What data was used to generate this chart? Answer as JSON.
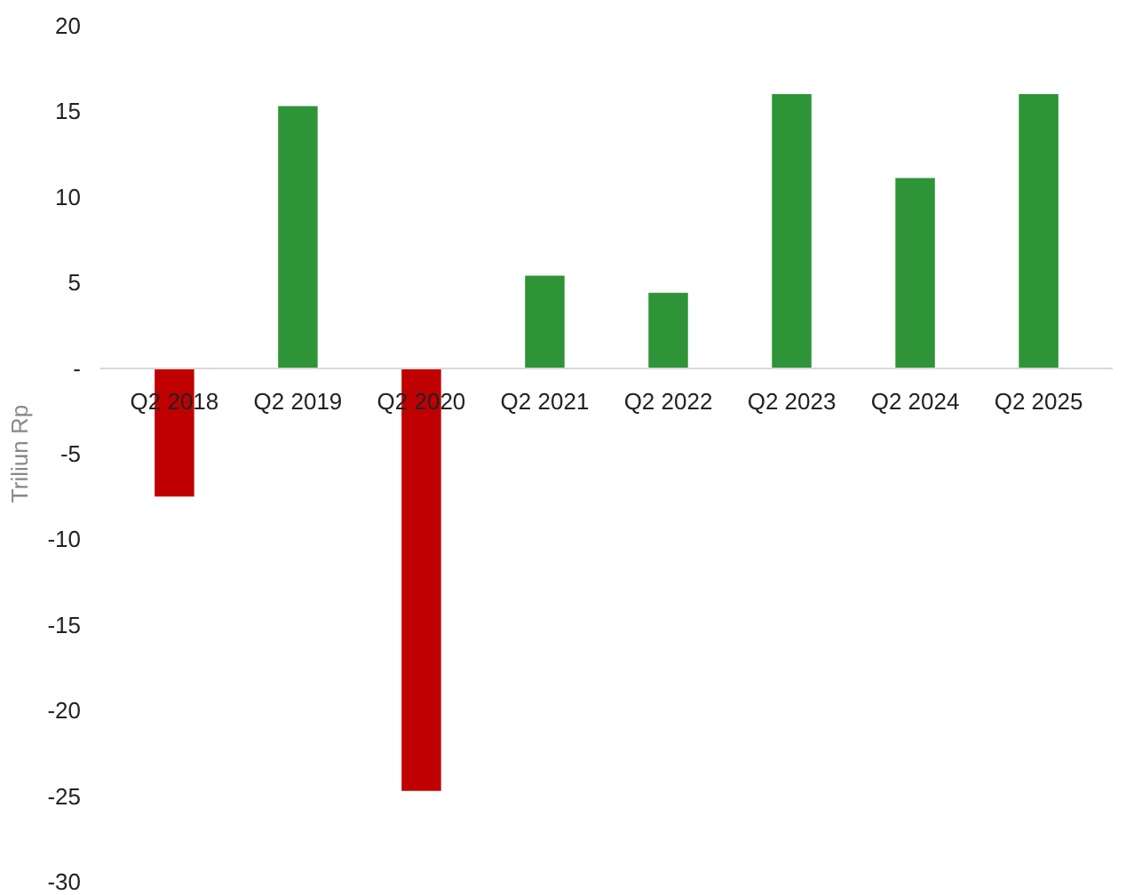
{
  "chart_data": {
    "type": "bar",
    "ylabel": "Triliun Rp",
    "categories": [
      "Q2 2018",
      "Q2 2019",
      "Q2 2020",
      "Q2 2021",
      "Q2 2022",
      "Q2 2023",
      "Q2 2024",
      "Q2 2025"
    ],
    "values": [
      -7.5,
      15.3,
      -24.7,
      5.4,
      4.4,
      16.0,
      11.1,
      16.0
    ],
    "colors": [
      "#c00000",
      "#2e9437",
      "#c00000",
      "#2e9437",
      "#2e9437",
      "#2e9437",
      "#2e9437",
      "#2e9437"
    ],
    "ylim": [
      -30,
      20
    ],
    "yticks": [
      -30,
      -25,
      -20,
      -15,
      -10,
      -5,
      {
        "value": 0,
        "label": "-"
      },
      5,
      10,
      15,
      20
    ],
    "grid": false
  }
}
